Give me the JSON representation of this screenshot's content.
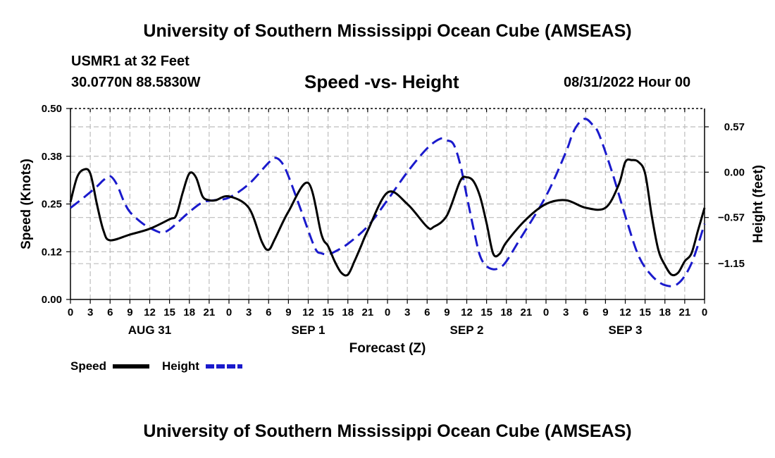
{
  "header": {
    "title": "University of Southern Mississippi Ocean Cube (AMSEAS)",
    "station": "USMR1 at 32 Feet",
    "coordinates": "30.0770N  88.5830W",
    "subtitle": "Speed -vs- Height",
    "datetime": "08/31/2022 Hour 00"
  },
  "footer": {
    "title": "University of Southern Mississippi Ocean Cube (AMSEAS)"
  },
  "chart_data": {
    "type": "line",
    "title": "Speed -vs- Height",
    "xlabel": "Forecast (Z)",
    "ylabel": "Speed (Knots)",
    "y2label": "Height (feet)",
    "x_range_hours": [
      0,
      96
    ],
    "x_tick_step_hours": 3,
    "x_tick_labels": [
      "0",
      "3",
      "6",
      "9",
      "12",
      "15",
      "18",
      "21",
      "0",
      "3",
      "6",
      "9",
      "12",
      "15",
      "18",
      "21",
      "0",
      "3",
      "6",
      "9",
      "12",
      "15",
      "18",
      "21",
      "0",
      "3",
      "6",
      "9",
      "12",
      "15",
      "18",
      "21",
      "0"
    ],
    "day_labels": [
      {
        "label": "AUG 31",
        "center_hour": 12
      },
      {
        "label": "SEP 1",
        "center_hour": 36
      },
      {
        "label": "SEP 2",
        "center_hour": 60
      },
      {
        "label": "SEP 3",
        "center_hour": 84
      }
    ],
    "ylim": [
      0,
      0.5
    ],
    "y_ticks": [
      0,
      0.125,
      0.25,
      0.375,
      0.5
    ],
    "y_tick_labels": [
      "0.00",
      "0.12",
      "0.25",
      "0.38",
      "0.50"
    ],
    "y2lim": [
      -1.6,
      0.8
    ],
    "y2_ticks": [
      0.57,
      0,
      -0.57,
      -1.15
    ],
    "y2_tick_labels": [
      "0.57",
      "0.00",
      "−0.57",
      "−1.15"
    ],
    "grid": true,
    "legend": [
      {
        "name": "Speed",
        "color": "#000000",
        "style": "solid"
      },
      {
        "name": "Height",
        "color": "#1a1acc",
        "style": "dashed"
      }
    ],
    "series": [
      {
        "name": "Speed",
        "axis": "left",
        "color": "#000000",
        "dash": false,
        "x": [
          0,
          1,
          2,
          3,
          4,
          5,
          6,
          9,
          12,
          15,
          16,
          17,
          18,
          19,
          20,
          21,
          22,
          24,
          27,
          29,
          30,
          31,
          33,
          36,
          38,
          39,
          40,
          41,
          42,
          43,
          44,
          45,
          48,
          51,
          54,
          55,
          57,
          59,
          60,
          61,
          62,
          63,
          64,
          65,
          66,
          69,
          72,
          75,
          78,
          81,
          83,
          84,
          85,
          86,
          87,
          88,
          89,
          90,
          91,
          92,
          93,
          94,
          95,
          96
        ],
        "y": [
          0.255,
          0.32,
          0.34,
          0.33,
          0.25,
          0.18,
          0.155,
          0.17,
          0.185,
          0.21,
          0.22,
          0.28,
          0.33,
          0.32,
          0.27,
          0.26,
          0.26,
          0.27,
          0.24,
          0.15,
          0.13,
          0.16,
          0.23,
          0.305,
          0.17,
          0.14,
          0.1,
          0.07,
          0.065,
          0.1,
          0.14,
          0.18,
          0.28,
          0.25,
          0.19,
          0.19,
          0.22,
          0.31,
          0.32,
          0.31,
          0.27,
          0.2,
          0.12,
          0.12,
          0.15,
          0.21,
          0.25,
          0.26,
          0.24,
          0.24,
          0.3,
          0.36,
          0.365,
          0.36,
          0.33,
          0.22,
          0.13,
          0.09,
          0.065,
          0.07,
          0.1,
          0.12,
          0.18,
          0.24
        ]
      },
      {
        "name": "Height",
        "axis": "right",
        "color": "#1a1acc",
        "dash": true,
        "x": [
          0,
          2,
          4,
          5,
          6,
          7,
          8,
          9,
          11,
          13,
          14,
          15,
          16,
          18,
          20,
          22,
          24,
          27,
          30,
          31,
          32,
          33,
          35,
          37,
          38,
          39,
          40,
          42,
          45,
          48,
          51,
          54,
          56,
          57,
          58,
          59,
          60,
          61,
          62,
          63,
          64,
          65,
          66,
          68,
          72,
          75,
          76,
          77,
          78,
          79,
          80,
          82,
          84,
          86,
          88,
          90,
          92,
          94,
          96
        ],
        "y": [
          -0.45,
          -0.32,
          -0.18,
          -0.1,
          -0.05,
          -0.15,
          -0.35,
          -0.5,
          -0.65,
          -0.74,
          -0.76,
          -0.72,
          -0.65,
          -0.5,
          -0.38,
          -0.35,
          -0.32,
          -0.15,
          0.12,
          0.18,
          0.12,
          -0.05,
          -0.5,
          -0.95,
          -1.02,
          -1.03,
          -1.0,
          -0.9,
          -0.68,
          -0.35,
          0.0,
          0.3,
          0.42,
          0.4,
          0.35,
          0.1,
          -0.3,
          -0.7,
          -1.05,
          -1.18,
          -1.22,
          -1.2,
          -1.12,
          -0.85,
          -0.3,
          0.25,
          0.48,
          0.62,
          0.67,
          0.6,
          0.48,
          0.0,
          -0.55,
          -1.05,
          -1.3,
          -1.42,
          -1.4,
          -1.15,
          -0.65
        ]
      }
    ]
  }
}
